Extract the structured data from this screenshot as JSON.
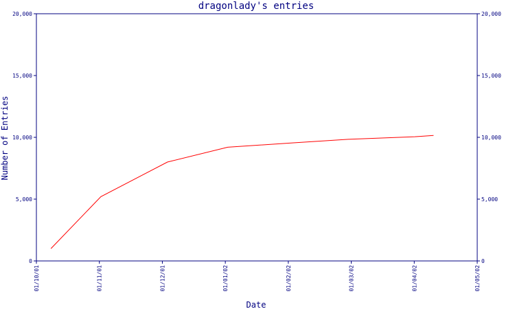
{
  "chart_data": {
    "type": "line",
    "title": "dragonlady's entries",
    "xlabel": "Date",
    "ylabel": "Number of Entries",
    "x_tick_labels": [
      "01/10/01",
      "01/11/01",
      "01/12/01",
      "01/01/02",
      "01/02/02",
      "01/03/02",
      "01/04/02",
      "01/05/02"
    ],
    "y_tick_labels": [
      "0",
      "5,000",
      "10,000",
      "15,000",
      "20,000"
    ],
    "y_tick_values": [
      0,
      5000,
      10000,
      15000,
      20000
    ],
    "ylim": [
      0,
      20000
    ],
    "xlim": [
      "2001-10-01",
      "2002-05-01"
    ],
    "grid": false,
    "series": [
      {
        "color": "#ff0000",
        "points": [
          {
            "x": "2001-10-08",
            "y": 1000
          },
          {
            "x": "2001-11-01",
            "y": 5200
          },
          {
            "x": "2001-12-03",
            "y": 8000
          },
          {
            "x": "2002-01-01",
            "y": 9200
          },
          {
            "x": "2002-02-01",
            "y": 9550
          },
          {
            "x": "2002-03-01",
            "y": 9850
          },
          {
            "x": "2002-04-01",
            "y": 10050
          },
          {
            "x": "2002-04-10",
            "y": 10150
          }
        ]
      }
    ],
    "axis_color": "#000080"
  }
}
